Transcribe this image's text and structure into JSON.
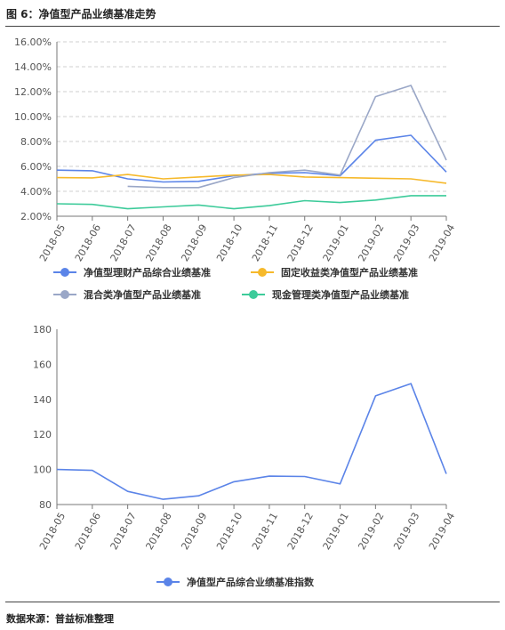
{
  "figure_title": "图 6：净值型产品业绩基准走势",
  "source_note": "数据来源：普益标准整理",
  "chart_data": [
    {
      "type": "line",
      "categories": [
        "2018-05",
        "2018-06",
        "2018-07",
        "2018-08",
        "2018-09",
        "2018-10",
        "2018-11",
        "2018-12",
        "2019-01",
        "2019-02",
        "2019-03",
        "2019-04"
      ],
      "ylim": [
        2,
        16
      ],
      "yticks": [
        "2.00%",
        "4.00%",
        "6.00%",
        "8.00%",
        "10.00%",
        "12.00%",
        "14.00%",
        "16.00%"
      ],
      "grid": "horizontal dashed",
      "legend": "bottom",
      "series": [
        {
          "name": "净值型理财产品综合业绩基准",
          "color": "#5b84e8",
          "values": [
            5.7,
            5.65,
            5.0,
            4.75,
            4.8,
            5.25,
            5.45,
            5.5,
            5.25,
            8.1,
            8.5,
            5.55
          ]
        },
        {
          "name": "固定收益类净值型产品业绩基准",
          "color": "#f6b92b",
          "values": [
            5.1,
            5.08,
            5.35,
            5.0,
            5.15,
            5.3,
            5.35,
            5.15,
            5.1,
            5.05,
            5.0,
            4.65
          ]
        },
        {
          "name": "混合类净值型产品业绩基准",
          "color": "#9aa7c7",
          "values": [
            null,
            null,
            4.4,
            4.3,
            4.3,
            5.1,
            5.5,
            5.7,
            5.3,
            11.6,
            12.5,
            6.5
          ]
        },
        {
          "name": "现金管理类净值型产品业绩基准",
          "color": "#3dcb9a",
          "values": [
            3.0,
            2.95,
            2.6,
            2.75,
            2.9,
            2.6,
            2.85,
            3.25,
            3.1,
            3.3,
            3.65,
            3.65
          ]
        }
      ]
    },
    {
      "type": "line",
      "categories": [
        "2018-05",
        "2018-06",
        "2018-07",
        "2018-08",
        "2018-09",
        "2018-10",
        "2018-11",
        "2018-12",
        "2019-01",
        "2019-02",
        "2019-03",
        "2019-04"
      ],
      "ylim": [
        80,
        180
      ],
      "yticks": [
        "80",
        "100",
        "120",
        "140",
        "160",
        "180"
      ],
      "grid": "none",
      "legend": "bottom",
      "series": [
        {
          "name": "净值型产品综合业绩基准指数",
          "color": "#5b84e8",
          "values": [
            100,
            99.5,
            87.5,
            83,
            85,
            93,
            96.2,
            96,
            91.8,
            142,
            149,
            97.5
          ]
        }
      ]
    }
  ]
}
